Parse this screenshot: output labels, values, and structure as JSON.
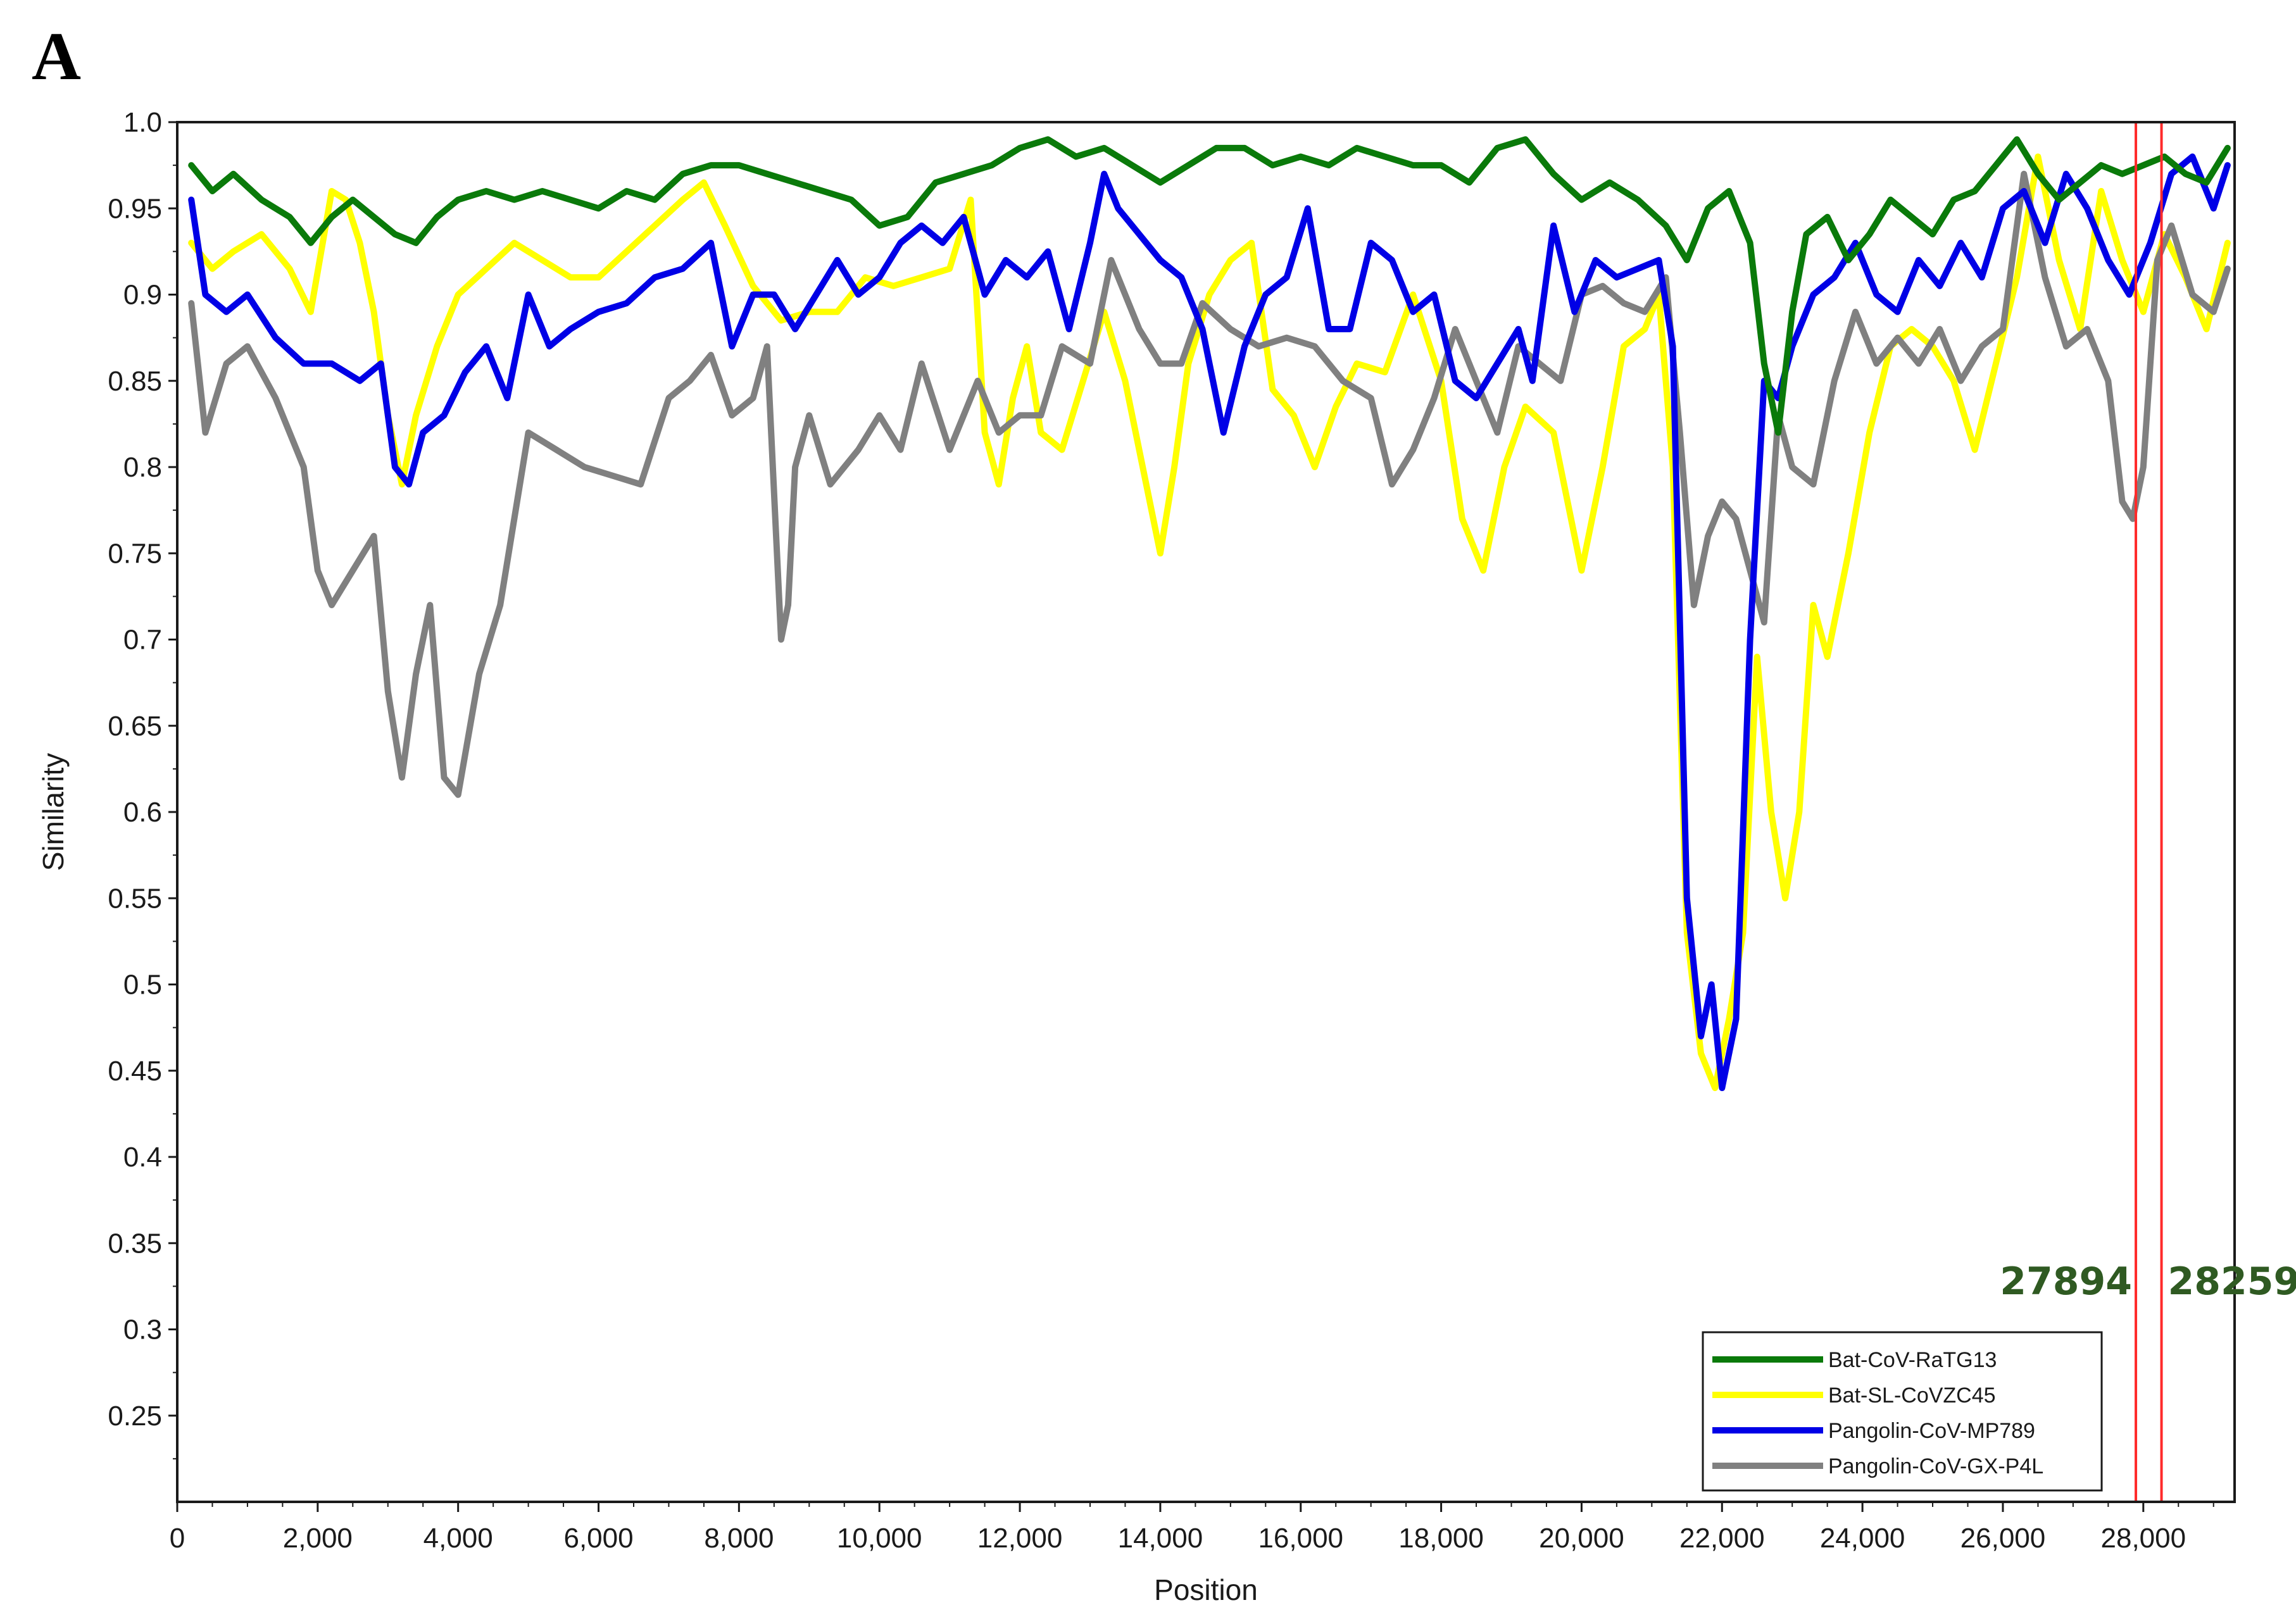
{
  "panel_label": "A",
  "colors": {
    "Bat-CoV-RaTG13": "#0a7a0a",
    "Bat-SL-CoVZC45": "#ffff00",
    "Pangolin-CoV-MP789": "#0000e6",
    "Pangolin-CoV-GX-P4L": "#808080",
    "marker": "#ff2a2a",
    "annotation": "#2f5a22"
  },
  "chart_data": {
    "type": "line",
    "title": "",
    "xlabel": "Position",
    "ylabel": "Similarity",
    "xlim": [
      0,
      29300
    ],
    "ylim": [
      0.2,
      1.0
    ],
    "x_ticks": [
      0,
      2000,
      4000,
      6000,
      8000,
      10000,
      12000,
      14000,
      16000,
      18000,
      20000,
      22000,
      24000,
      26000,
      28000
    ],
    "x_tick_labels": [
      "0",
      "2,000",
      "4,000",
      "6,000",
      "8,000",
      "10,000",
      "12,000",
      "14,000",
      "16,000",
      "18,000",
      "20,000",
      "22,000",
      "24,000",
      "26,000",
      "28,000"
    ],
    "y_ticks": [
      0.25,
      0.3,
      0.35,
      0.4,
      0.45,
      0.5,
      0.55,
      0.6,
      0.65,
      0.7,
      0.75,
      0.8,
      0.85,
      0.9,
      0.95,
      1.0
    ],
    "y_tick_labels": [
      "0.25",
      "0.3",
      "0.35",
      "0.4",
      "0.45",
      "0.5",
      "0.55",
      "0.6",
      "0.65",
      "0.7",
      "0.75",
      "0.8",
      "0.85",
      "0.9",
      "0.95",
      "1.0"
    ],
    "grid": false,
    "legend_position": "bottom-right",
    "vertical_markers": [
      {
        "x": 27894,
        "label": "27894"
      },
      {
        "x": 28259,
        "label": "28259"
      }
    ],
    "series": [
      {
        "name": "Bat-CoV-RaTG13",
        "x": [
          200,
          500,
          800,
          1200,
          1600,
          1900,
          2200,
          2500,
          2800,
          3100,
          3400,
          3700,
          4000,
          4400,
          4800,
          5200,
          5600,
          6000,
          6400,
          6800,
          7200,
          7600,
          8000,
          8400,
          8800,
          9200,
          9600,
          10000,
          10400,
          10800,
          11200,
          11600,
          12000,
          12400,
          12800,
          13200,
          13600,
          14000,
          14400,
          14800,
          15200,
          15600,
          16000,
          16400,
          16800,
          17200,
          17600,
          18000,
          18400,
          18800,
          19200,
          19600,
          20000,
          20400,
          20800,
          21200,
          21500,
          21800,
          22100,
          22400,
          22600,
          22800,
          23000,
          23200,
          23500,
          23800,
          24100,
          24400,
          24700,
          25000,
          25300,
          25600,
          25900,
          26200,
          26500,
          26800,
          27100,
          27400,
          27700,
          28000,
          28300,
          28600,
          28900,
          29200
        ],
        "y": [
          0.975,
          0.96,
          0.97,
          0.955,
          0.945,
          0.93,
          0.945,
          0.955,
          0.945,
          0.935,
          0.93,
          0.945,
          0.955,
          0.96,
          0.955,
          0.96,
          0.955,
          0.95,
          0.96,
          0.955,
          0.97,
          0.975,
          0.975,
          0.97,
          0.965,
          0.96,
          0.955,
          0.94,
          0.945,
          0.965,
          0.97,
          0.975,
          0.985,
          0.99,
          0.98,
          0.985,
          0.975,
          0.965,
          0.975,
          0.985,
          0.985,
          0.975,
          0.98,
          0.975,
          0.985,
          0.98,
          0.975,
          0.975,
          0.965,
          0.985,
          0.99,
          0.97,
          0.955,
          0.965,
          0.955,
          0.94,
          0.92,
          0.95,
          0.96,
          0.93,
          0.86,
          0.82,
          0.89,
          0.935,
          0.945,
          0.92,
          0.935,
          0.955,
          0.945,
          0.935,
          0.955,
          0.96,
          0.975,
          0.99,
          0.97,
          0.955,
          0.965,
          0.975,
          0.97,
          0.975,
          0.98,
          0.97,
          0.965,
          0.985
        ]
      },
      {
        "name": "Bat-SL-CoVZC45",
        "x": [
          200,
          500,
          800,
          1200,
          1600,
          1900,
          2200,
          2400,
          2600,
          2800,
          3000,
          3200,
          3400,
          3700,
          4000,
          4400,
          4800,
          5200,
          5600,
          6000,
          6400,
          6800,
          7200,
          7500,
          7800,
          8200,
          8600,
          9000,
          9400,
          9800,
          10200,
          10600,
          11000,
          11300,
          11500,
          11700,
          11900,
          12100,
          12300,
          12600,
          12900,
          13200,
          13500,
          13800,
          14000,
          14200,
          14400,
          14700,
          15000,
          15300,
          15600,
          15900,
          16200,
          16500,
          16800,
          17200,
          17600,
          18000,
          18300,
          18600,
          18900,
          19200,
          19600,
          20000,
          20300,
          20600,
          20900,
          21100,
          21300,
          21500,
          21700,
          21900,
          22100,
          22300,
          22500,
          22700,
          22900,
          23100,
          23300,
          23500,
          23800,
          24100,
          24400,
          24700,
          25000,
          25300,
          25600,
          25900,
          26200,
          26500,
          26800,
          27100,
          27400,
          27700,
          28000,
          28300,
          28600,
          28900,
          29200
        ],
        "y": [
          0.93,
          0.915,
          0.925,
          0.935,
          0.915,
          0.89,
          0.96,
          0.955,
          0.93,
          0.89,
          0.83,
          0.79,
          0.83,
          0.87,
          0.9,
          0.915,
          0.93,
          0.92,
          0.91,
          0.91,
          0.925,
          0.94,
          0.955,
          0.965,
          0.94,
          0.905,
          0.885,
          0.89,
          0.89,
          0.91,
          0.905,
          0.91,
          0.915,
          0.955,
          0.82,
          0.79,
          0.84,
          0.87,
          0.82,
          0.81,
          0.85,
          0.89,
          0.85,
          0.79,
          0.75,
          0.8,
          0.86,
          0.9,
          0.92,
          0.93,
          0.845,
          0.83,
          0.8,
          0.835,
          0.86,
          0.855,
          0.9,
          0.85,
          0.77,
          0.74,
          0.8,
          0.835,
          0.82,
          0.74,
          0.8,
          0.87,
          0.88,
          0.9,
          0.8,
          0.53,
          0.46,
          0.44,
          0.48,
          0.53,
          0.69,
          0.6,
          0.55,
          0.6,
          0.72,
          0.69,
          0.75,
          0.82,
          0.87,
          0.88,
          0.87,
          0.85,
          0.81,
          0.86,
          0.91,
          0.98,
          0.92,
          0.88,
          0.96,
          0.92,
          0.89,
          0.935,
          0.91,
          0.88,
          0.93
        ]
      },
      {
        "name": "Pangolin-CoV-MP789",
        "x": [
          200,
          400,
          700,
          1000,
          1400,
          1800,
          2200,
          2600,
          2900,
          3100,
          3300,
          3500,
          3800,
          4100,
          4400,
          4700,
          5000,
          5300,
          5600,
          6000,
          6400,
          6800,
          7200,
          7600,
          7900,
          8200,
          8500,
          8800,
          9100,
          9400,
          9700,
          10000,
          10300,
          10600,
          10900,
          11200,
          11500,
          11800,
          12100,
          12400,
          12700,
          13000,
          13200,
          13400,
          13700,
          14000,
          14300,
          14600,
          14900,
          15200,
          15500,
          15800,
          16100,
          16400,
          16700,
          17000,
          17300,
          17600,
          17900,
          18200,
          18500,
          18800,
          19100,
          19300,
          19600,
          19900,
          20200,
          20500,
          20800,
          21100,
          21300,
          21500,
          21700,
          21850,
          22000,
          22200,
          22400,
          22600,
          22800,
          23000,
          23300,
          23600,
          23900,
          24200,
          24500,
          24800,
          25100,
          25400,
          25700,
          26000,
          26300,
          26600,
          26900,
          27200,
          27500,
          27800,
          28100,
          28400,
          28700,
          29000,
          29200
        ],
        "y": [
          0.955,
          0.9,
          0.89,
          0.9,
          0.875,
          0.86,
          0.86,
          0.85,
          0.86,
          0.8,
          0.79,
          0.82,
          0.83,
          0.855,
          0.87,
          0.84,
          0.9,
          0.87,
          0.88,
          0.89,
          0.895,
          0.91,
          0.915,
          0.93,
          0.87,
          0.9,
          0.9,
          0.88,
          0.9,
          0.92,
          0.9,
          0.91,
          0.93,
          0.94,
          0.93,
          0.945,
          0.9,
          0.92,
          0.91,
          0.925,
          0.88,
          0.93,
          0.97,
          0.95,
          0.935,
          0.92,
          0.91,
          0.88,
          0.82,
          0.87,
          0.9,
          0.91,
          0.95,
          0.88,
          0.88,
          0.93,
          0.92,
          0.89,
          0.9,
          0.85,
          0.84,
          0.86,
          0.88,
          0.85,
          0.94,
          0.89,
          0.92,
          0.91,
          0.915,
          0.92,
          0.87,
          0.55,
          0.47,
          0.5,
          0.44,
          0.48,
          0.7,
          0.85,
          0.84,
          0.87,
          0.9,
          0.91,
          0.93,
          0.9,
          0.89,
          0.92,
          0.905,
          0.93,
          0.91,
          0.95,
          0.96,
          0.93,
          0.97,
          0.95,
          0.92,
          0.9,
          0.93,
          0.97,
          0.98,
          0.95,
          0.975
        ]
      },
      {
        "name": "Pangolin-CoV-GX-P4L",
        "x": [
          200,
          400,
          700,
          1000,
          1400,
          1800,
          2000,
          2200,
          2500,
          2800,
          3000,
          3200,
          3400,
          3600,
          3800,
          4000,
          4300,
          4600,
          5000,
          5400,
          5800,
          6200,
          6600,
          7000,
          7300,
          7600,
          7900,
          8200,
          8400,
          8600,
          8700,
          8800,
          9000,
          9300,
          9700,
          10000,
          10300,
          10600,
          11000,
          11400,
          11700,
          12000,
          12300,
          12600,
          13000,
          13300,
          13700,
          14000,
          14300,
          14600,
          15000,
          15400,
          15800,
          16200,
          16600,
          17000,
          17300,
          17600,
          17900,
          18200,
          18500,
          18800,
          19100,
          19400,
          19700,
          20000,
          20300,
          20600,
          20900,
          21200,
          21400,
          21600,
          21800,
          22000,
          22200,
          22400,
          22600,
          22800,
          23000,
          23300,
          23600,
          23900,
          24200,
          24500,
          24800,
          25100,
          25400,
          25700,
          26000,
          26300,
          26600,
          26900,
          27200,
          27500,
          27700,
          27850,
          28000,
          28200,
          28400,
          28700,
          29000,
          29200
        ],
        "y": [
          0.895,
          0.82,
          0.86,
          0.87,
          0.84,
          0.8,
          0.74,
          0.72,
          0.74,
          0.76,
          0.67,
          0.62,
          0.68,
          0.72,
          0.62,
          0.61,
          0.68,
          0.72,
          0.82,
          0.81,
          0.8,
          0.795,
          0.79,
          0.84,
          0.85,
          0.865,
          0.83,
          0.84,
          0.87,
          0.7,
          0.72,
          0.8,
          0.83,
          0.79,
          0.81,
          0.83,
          0.81,
          0.86,
          0.81,
          0.85,
          0.82,
          0.83,
          0.83,
          0.87,
          0.86,
          0.92,
          0.88,
          0.86,
          0.86,
          0.895,
          0.88,
          0.87,
          0.875,
          0.87,
          0.85,
          0.84,
          0.79,
          0.81,
          0.84,
          0.88,
          0.85,
          0.82,
          0.87,
          0.86,
          0.85,
          0.9,
          0.905,
          0.895,
          0.89,
          0.91,
          0.82,
          0.72,
          0.76,
          0.78,
          0.77,
          0.74,
          0.71,
          0.83,
          0.8,
          0.79,
          0.85,
          0.89,
          0.86,
          0.875,
          0.86,
          0.88,
          0.85,
          0.87,
          0.88,
          0.97,
          0.91,
          0.87,
          0.88,
          0.85,
          0.78,
          0.77,
          0.8,
          0.92,
          0.94,
          0.9,
          0.89,
          0.915
        ]
      }
    ]
  }
}
